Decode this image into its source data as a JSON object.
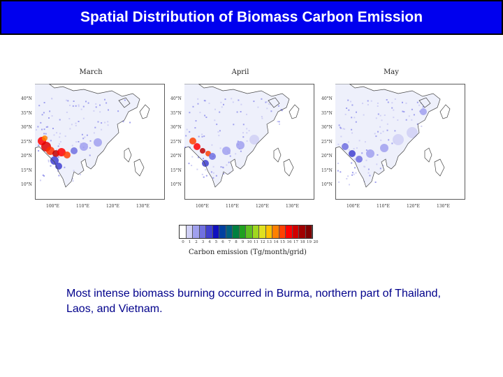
{
  "slide": {
    "title": "Spatial Distribution of Biomass Carbon Emission",
    "caption": "Most intense biomass burning occurred in Burma, northern part of Thailand, Laos, and Vietnam."
  },
  "maps": [
    {
      "title": "March",
      "intensity": "high"
    },
    {
      "title": "April",
      "intensity": "medium"
    },
    {
      "title": "May",
      "intensity": "low"
    }
  ],
  "lat_labels": [
    "40°N",
    "35°N",
    "30°N",
    "25°N",
    "20°N",
    "15°N",
    "10°N"
  ],
  "lon_labels": [
    "100°E",
    "110°E",
    "120°E",
    "130°E"
  ],
  "legend": {
    "caption": "Carbon emission (Tg/month/grid)",
    "ticks": [
      "0",
      "1",
      "2",
      "3",
      "4",
      "5",
      "6",
      "7",
      "8",
      "9",
      "10",
      "11",
      "12",
      "13",
      "14",
      "15",
      "16",
      "17",
      "18",
      "19",
      "20"
    ],
    "colors": [
      "#ffffff",
      "#d0d0f5",
      "#a0a0ee",
      "#7070e0",
      "#4040d0",
      "#1010c0",
      "#0040a0",
      "#006080",
      "#008040",
      "#20a020",
      "#60c020",
      "#a0d820",
      "#e0e020",
      "#ffc000",
      "#ff8000",
      "#ff4000",
      "#ff0000",
      "#d00000",
      "#a00000",
      "#800000"
    ]
  }
}
